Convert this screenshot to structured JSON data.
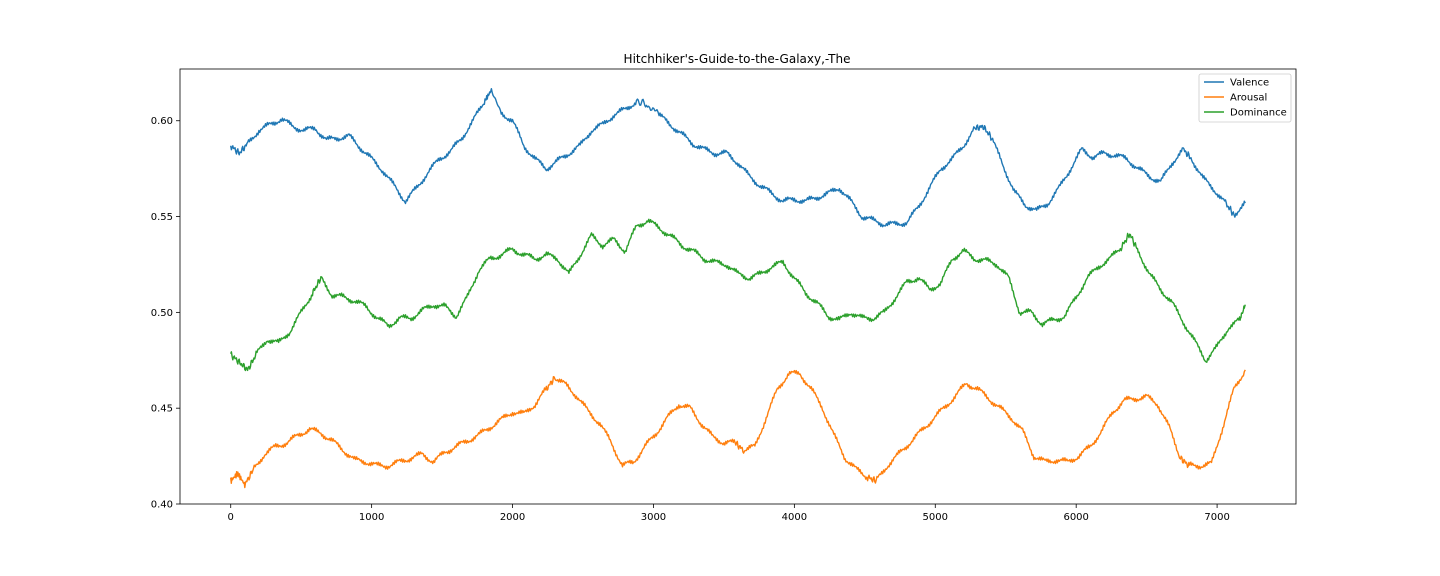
{
  "chart_data": {
    "type": "line",
    "title": "Hitchhiker's-Guide-to-the-Galaxy,-The",
    "xlabel": "",
    "ylabel": "",
    "xlim": [
      -360,
      7560
    ],
    "ylim": [
      0.4,
      0.627
    ],
    "xticks": [
      0,
      1000,
      2000,
      3000,
      4000,
      5000,
      6000,
      7000
    ],
    "xtick_labels": [
      "0",
      "1000",
      "2000",
      "3000",
      "4000",
      "5000",
      "6000",
      "7000"
    ],
    "yticks": [
      0.4,
      0.45,
      0.5,
      0.55,
      0.6
    ],
    "ytick_labels": [
      "0.40",
      "0.45",
      "0.50",
      "0.55",
      "0.60"
    ],
    "grid": false,
    "legend_position": "top-right",
    "series": [
      {
        "name": "Valence",
        "color": "#1f77b4",
        "x": [
          0,
          60,
          120,
          200,
          280,
          360,
          440,
          520,
          600,
          680,
          760,
          840,
          920,
          1000,
          1080,
          1160,
          1240,
          1320,
          1400,
          1480,
          1560,
          1640,
          1720,
          1800,
          1850,
          1920,
          2000,
          2080,
          2160,
          2240,
          2320,
          2400,
          2480,
          2560,
          2640,
          2720,
          2800,
          2880,
          2950,
          3040,
          3120,
          3200,
          3280,
          3360,
          3440,
          3520,
          3600,
          3680,
          3760,
          3840,
          3920,
          4000,
          4080,
          4160,
          4240,
          4320,
          4400,
          4480,
          4560,
          4640,
          4720,
          4800,
          4880,
          4960,
          5040,
          5120,
          5200,
          5280,
          5340,
          5400,
          5480,
          5560,
          5640,
          5720,
          5800,
          5880,
          5960,
          6040,
          6120,
          6200,
          6280,
          6360,
          6440,
          6520,
          6600,
          6680,
          6760,
          6820,
          6900,
          6980,
          7060,
          7120,
          7200
        ],
        "values": [
          0.587,
          0.583,
          0.588,
          0.595,
          0.598,
          0.601,
          0.597,
          0.595,
          0.596,
          0.59,
          0.591,
          0.592,
          0.586,
          0.58,
          0.574,
          0.566,
          0.558,
          0.565,
          0.573,
          0.58,
          0.584,
          0.591,
          0.6,
          0.61,
          0.616,
          0.604,
          0.6,
          0.587,
          0.58,
          0.575,
          0.579,
          0.583,
          0.587,
          0.595,
          0.598,
          0.603,
          0.606,
          0.61,
          0.609,
          0.603,
          0.598,
          0.593,
          0.588,
          0.585,
          0.583,
          0.583,
          0.578,
          0.571,
          0.566,
          0.562,
          0.558,
          0.559,
          0.558,
          0.56,
          0.562,
          0.565,
          0.558,
          0.55,
          0.548,
          0.546,
          0.546,
          0.547,
          0.555,
          0.565,
          0.575,
          0.58,
          0.587,
          0.596,
          0.597,
          0.591,
          0.577,
          0.563,
          0.556,
          0.553,
          0.557,
          0.565,
          0.575,
          0.585,
          0.581,
          0.583,
          0.582,
          0.58,
          0.575,
          0.571,
          0.568,
          0.578,
          0.585,
          0.58,
          0.57,
          0.564,
          0.557,
          0.551,
          0.557
        ]
      },
      {
        "name": "Arousal",
        "color": "#ff7f0e",
        "x": [
          0,
          50,
          100,
          160,
          240,
          320,
          400,
          480,
          560,
          640,
          720,
          800,
          880,
          960,
          1040,
          1120,
          1200,
          1280,
          1360,
          1440,
          1520,
          1600,
          1680,
          1760,
          1840,
          1920,
          2000,
          2080,
          2160,
          2240,
          2300,
          2380,
          2460,
          2540,
          2620,
          2700,
          2780,
          2860,
          2940,
          3020,
          3100,
          3180,
          3260,
          3340,
          3420,
          3500,
          3580,
          3640,
          3720,
          3800,
          3880,
          3960,
          4040,
          4120,
          4200,
          4280,
          4360,
          4440,
          4520,
          4580,
          4660,
          4740,
          4820,
          4900,
          4980,
          5060,
          5140,
          5220,
          5300,
          5380,
          5460,
          5540,
          5620,
          5700,
          5780,
          5860,
          5940,
          6020,
          6100,
          6180,
          6260,
          6340,
          6420,
          6500,
          6580,
          6660,
          6740,
          6800,
          6880,
          6960,
          7040,
          7120,
          7200
        ],
        "values": [
          0.412,
          0.416,
          0.41,
          0.418,
          0.426,
          0.43,
          0.432,
          0.436,
          0.439,
          0.437,
          0.433,
          0.428,
          0.423,
          0.422,
          0.42,
          0.42,
          0.422,
          0.424,
          0.426,
          0.422,
          0.427,
          0.43,
          0.433,
          0.436,
          0.44,
          0.444,
          0.448,
          0.447,
          0.452,
          0.46,
          0.466,
          0.462,
          0.456,
          0.448,
          0.442,
          0.432,
          0.42,
          0.422,
          0.43,
          0.437,
          0.445,
          0.452,
          0.45,
          0.442,
          0.435,
          0.432,
          0.432,
          0.428,
          0.43,
          0.445,
          0.46,
          0.468,
          0.468,
          0.46,
          0.45,
          0.436,
          0.424,
          0.418,
          0.414,
          0.412,
          0.42,
          0.426,
          0.432,
          0.438,
          0.444,
          0.45,
          0.456,
          0.463,
          0.46,
          0.455,
          0.45,
          0.445,
          0.438,
          0.425,
          0.422,
          0.423,
          0.422,
          0.425,
          0.43,
          0.438,
          0.448,
          0.454,
          0.455,
          0.456,
          0.452,
          0.44,
          0.424,
          0.42,
          0.42,
          0.421,
          0.44,
          0.46,
          0.47
        ]
      },
      {
        "name": "Dominance",
        "color": "#2ca02c",
        "x": [
          0,
          60,
          120,
          180,
          260,
          340,
          420,
          500,
          580,
          640,
          720,
          800,
          880,
          960,
          1040,
          1120,
          1200,
          1280,
          1360,
          1440,
          1520,
          1600,
          1680,
          1760,
          1840,
          1920,
          2000,
          2080,
          2160,
          2240,
          2320,
          2400,
          2480,
          2560,
          2640,
          2720,
          2800,
          2880,
          2960,
          3040,
          3120,
          3200,
          3280,
          3360,
          3440,
          3520,
          3600,
          3680,
          3760,
          3840,
          3920,
          4000,
          4080,
          4160,
          4240,
          4320,
          4400,
          4480,
          4560,
          4640,
          4720,
          4800,
          4880,
          4960,
          5040,
          5120,
          5200,
          5280,
          5360,
          5440,
          5520,
          5600,
          5680,
          5760,
          5840,
          5920,
          6000,
          6080,
          6160,
          6240,
          6320,
          6380,
          6440,
          6520,
          6600,
          6680,
          6760,
          6840,
          6920,
          7000,
          7080,
          7160,
          7200
        ],
        "values": [
          0.478,
          0.474,
          0.47,
          0.478,
          0.486,
          0.484,
          0.49,
          0.5,
          0.51,
          0.518,
          0.509,
          0.508,
          0.506,
          0.503,
          0.497,
          0.493,
          0.497,
          0.497,
          0.501,
          0.504,
          0.503,
          0.498,
          0.508,
          0.522,
          0.528,
          0.53,
          0.533,
          0.53,
          0.528,
          0.53,
          0.528,
          0.52,
          0.53,
          0.54,
          0.535,
          0.538,
          0.532,
          0.545,
          0.548,
          0.544,
          0.54,
          0.535,
          0.532,
          0.528,
          0.526,
          0.525,
          0.52,
          0.518,
          0.52,
          0.524,
          0.526,
          0.518,
          0.51,
          0.505,
          0.498,
          0.496,
          0.5,
          0.497,
          0.497,
          0.5,
          0.508,
          0.516,
          0.518,
          0.512,
          0.515,
          0.528,
          0.532,
          0.528,
          0.527,
          0.525,
          0.518,
          0.5,
          0.5,
          0.494,
          0.496,
          0.498,
          0.508,
          0.518,
          0.524,
          0.528,
          0.534,
          0.541,
          0.532,
          0.52,
          0.512,
          0.505,
          0.495,
          0.485,
          0.475,
          0.482,
          0.492,
          0.496,
          0.504
        ]
      }
    ]
  }
}
